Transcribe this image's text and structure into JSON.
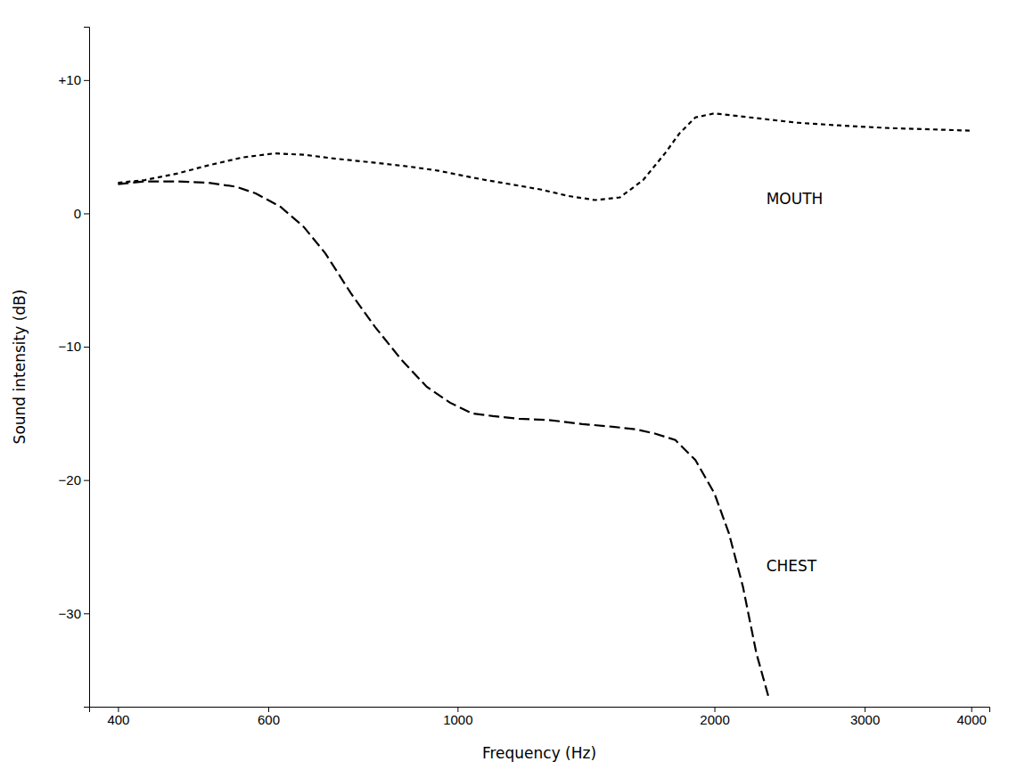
{
  "chart_data": {
    "type": "line",
    "xlabel": "Frequency (Hz)",
    "ylabel": "Sound intensity (dB)",
    "log": "x",
    "grid": false,
    "xlim": [
      370,
      4200
    ],
    "ylim": [
      -37,
      14
    ],
    "xticks": [
      400,
      600,
      1000,
      2000,
      3000,
      4000
    ],
    "yticks": [
      {
        "value": 10,
        "label": "+10"
      },
      0,
      {
        "value": -10,
        "label": "−10"
      },
      {
        "value": -20,
        "label": "−20"
      },
      {
        "value": -30,
        "label": "−30"
      }
    ],
    "series": [
      {
        "color": "#000000",
        "line_style": "dashed",
        "x": [
          400,
          430,
          470,
          510,
          560,
          610,
          660,
          720,
          800,
          880,
          950,
          1020,
          1080,
          1150,
          1250,
          1350,
          1450,
          1550,
          1650,
          1750,
          1820,
          1900,
          2000,
          2200,
          2500,
          2800,
          3200,
          3600,
          4000
        ],
        "values": [
          2.3,
          2.5,
          3.0,
          3.6,
          4.2,
          4.5,
          4.4,
          4.1,
          3.8,
          3.5,
          3.2,
          2.8,
          2.5,
          2.2,
          1.8,
          1.3,
          1.0,
          1.2,
          2.5,
          4.5,
          6.0,
          7.2,
          7.5,
          7.2,
          6.8,
          6.6,
          6.4,
          6.3,
          6.2
        ]
      },
      {
        "color": "#000000",
        "line_style": "longdash",
        "x": [
          400,
          430,
          470,
          510,
          550,
          580,
          620,
          660,
          700,
          750,
          800,
          860,
          920,
          980,
          1040,
          1100,
          1180,
          1280,
          1400,
          1520,
          1620,
          1700,
          1800,
          1900,
          2000,
          2080,
          2160,
          2240,
          2320
        ],
        "values": [
          2.2,
          2.4,
          2.4,
          2.3,
          2.0,
          1.5,
          0.5,
          -1.0,
          -3.0,
          -6.0,
          -8.5,
          -11.0,
          -13.0,
          -14.2,
          -15.0,
          -15.2,
          -15.4,
          -15.5,
          -15.8,
          -16.0,
          -16.2,
          -16.5,
          -17.0,
          -18.5,
          -21.0,
          -24.0,
          -28.0,
          -33.0,
          -36.5
        ]
      }
    ],
    "annotations": [
      {
        "text": "MOUTH",
        "x": 2300,
        "y": 1.0
      },
      {
        "text": "CHEST",
        "x": 2300,
        "y": -26.5
      }
    ]
  }
}
